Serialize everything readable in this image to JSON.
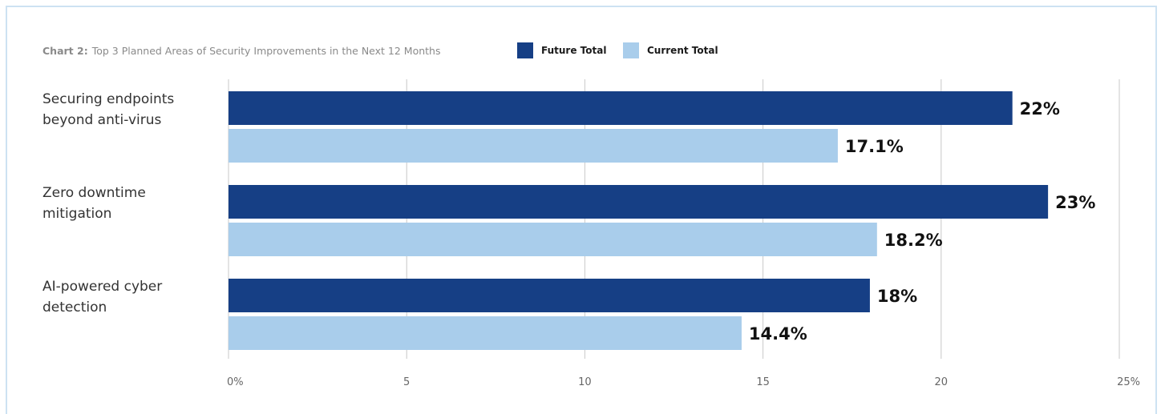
{
  "caption": {
    "prefix": "Chart 2:",
    "text": "Top 3 Planned Areas of Security Improvements in the Next 12 Months"
  },
  "colors": {
    "future": "#163f85",
    "current": "#a9cdeb",
    "grid": "#c8c8c8",
    "frame": "#cde2f2",
    "category_text": "#333333",
    "tick_text": "#666666",
    "value_text": "#111111"
  },
  "chart_data": {
    "type": "bar",
    "orientation": "horizontal",
    "title": "Top 3 Planned Areas of Security Improvements in the Next 12 Months",
    "categories": [
      [
        "Securing endpoints",
        "beyond anti-virus"
      ],
      [
        "Zero downtime",
        "mitigation"
      ],
      [
        "AI-powered cyber",
        "detection"
      ]
    ],
    "series": [
      {
        "name": "Future Total",
        "values": [
          22,
          23,
          18
        ],
        "labels": [
          "22%",
          "23%",
          "18%"
        ]
      },
      {
        "name": "Current Total",
        "values": [
          17.1,
          18.2,
          14.4
        ],
        "labels": [
          "17.1%",
          "18.2%",
          "14.4%"
        ]
      }
    ],
    "xlim": [
      0,
      25
    ],
    "xticks": [
      0,
      5,
      10,
      15,
      20,
      25
    ],
    "xtick_labels": [
      "0%",
      "5",
      "10",
      "15",
      "20",
      "25%"
    ],
    "grid": true,
    "legend_position": "top"
  }
}
